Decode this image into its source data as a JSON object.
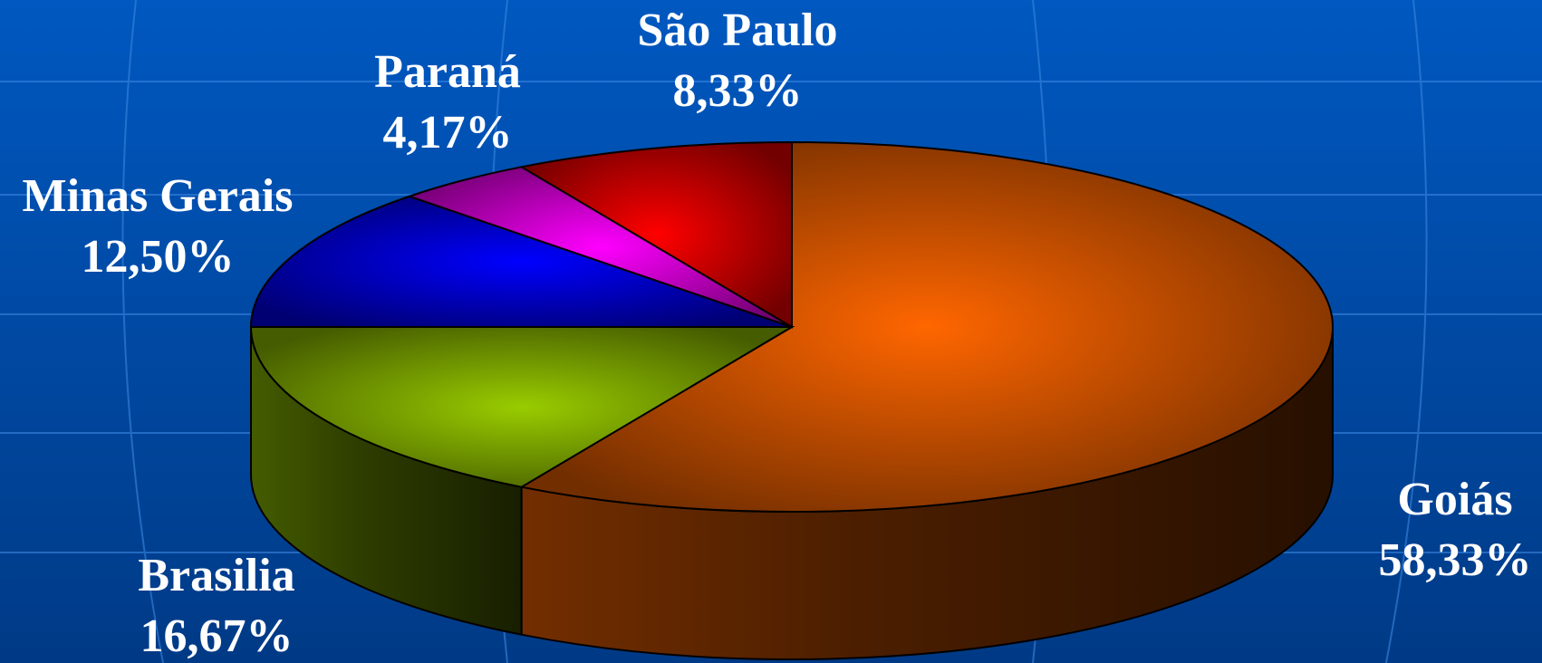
{
  "chart_data": {
    "type": "pie",
    "categories": [
      "Goiás",
      "Brasilia",
      "Minas Gerais",
      "Paraná",
      "São Paulo"
    ],
    "values": [
      58.33,
      16.67,
      12.5,
      4.17,
      8.33
    ],
    "value_labels": [
      "58,33%",
      "16,67%",
      "12,50%",
      "4,17%",
      "8,33%"
    ],
    "colors": [
      "#ff6600",
      "#99cc00",
      "#0000ff",
      "#ff00ff",
      "#ff0000"
    ]
  }
}
